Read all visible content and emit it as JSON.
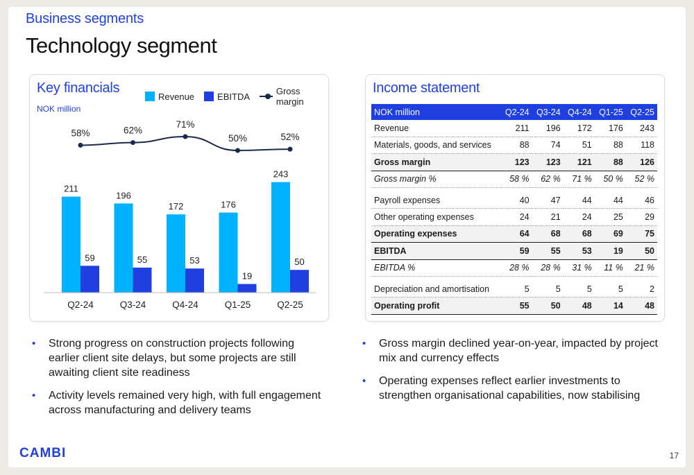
{
  "header": {
    "eyebrow": "Business segments",
    "title": "Technology segment"
  },
  "key_financials": {
    "title": "Key financials",
    "unit": "NOK million",
    "legend": {
      "revenue": "Revenue",
      "ebitda": "EBITDA",
      "gross_margin": "Gross margin"
    }
  },
  "chart_data": {
    "type": "bar",
    "categories": [
      "Q2-24",
      "Q3-24",
      "Q4-24",
      "Q1-25",
      "Q2-25"
    ],
    "series": [
      {
        "name": "Revenue",
        "values": [
          211,
          196,
          172,
          176,
          243
        ],
        "color": "#00b2ff"
      },
      {
        "name": "EBITDA",
        "values": [
          59,
          55,
          53,
          19,
          50
        ],
        "color": "#1f3fe0"
      }
    ],
    "line_series": {
      "name": "Gross margin",
      "values": [
        58,
        62,
        71,
        50,
        52
      ],
      "labels": [
        "58%",
        "62%",
        "71%",
        "50%",
        "52%"
      ],
      "color": "#1c2a4a"
    },
    "title": "Key financials",
    "ylabel": "NOK million",
    "ylim": [
      0,
      250
    ],
    "legend": "top",
    "grid": false
  },
  "income_statement": {
    "title": "Income statement",
    "header": [
      "NOK million",
      "Q2-24",
      "Q3-24",
      "Q4-24",
      "Q1-25",
      "Q2-25"
    ],
    "rows": [
      {
        "label": "Revenue",
        "values": [
          "211",
          "196",
          "172",
          "176",
          "243"
        ],
        "style": "normal"
      },
      {
        "label": "Materials, goods, and services",
        "values": [
          "88",
          "74",
          "51",
          "88",
          "118"
        ],
        "style": "normal"
      },
      {
        "label": "Gross margin",
        "values": [
          "123",
          "123",
          "121",
          "88",
          "126"
        ],
        "style": "bold"
      },
      {
        "label": "Gross margin %",
        "values": [
          "58 %",
          "62 %",
          "71 %",
          "50 %",
          "52 %"
        ],
        "style": "italic"
      },
      {
        "label": "Payroll expenses",
        "values": [
          "40",
          "47",
          "44",
          "44",
          "46"
        ],
        "style": "gap"
      },
      {
        "label": "Other operating expenses",
        "values": [
          "24",
          "21",
          "24",
          "25",
          "29"
        ],
        "style": "normal"
      },
      {
        "label": "Operating expenses",
        "values": [
          "64",
          "68",
          "68",
          "69",
          "75"
        ],
        "style": "bold"
      },
      {
        "label": "EBITDA",
        "values": [
          "59",
          "55",
          "53",
          "19",
          "50"
        ],
        "style": "bold"
      },
      {
        "label": "EBITDA %",
        "values": [
          "28 %",
          "28 %",
          "31 %",
          "11 %",
          "21 %"
        ],
        "style": "italic"
      },
      {
        "label": "Depreciation and amortisation",
        "values": [
          "5",
          "5",
          "5",
          "5",
          "2"
        ],
        "style": "gap"
      },
      {
        "label": "Operating profit",
        "values": [
          "55",
          "50",
          "48",
          "14",
          "48"
        ],
        "style": "bold"
      }
    ]
  },
  "bullets_left": [
    "Strong progress on construction projects following earlier client site delays, but some projects are still awaiting client site readiness",
    "Activity levels remained very high, with full engagement across manufacturing and delivery teams"
  ],
  "bullets_right": [
    "Gross margin declined year-on-year, impacted by project mix and currency effects",
    "Operating expenses reflect earlier investments to strengthen organisational capabilities, now stabilising"
  ],
  "footer": {
    "logo": "CAMBI",
    "page_number": "17"
  },
  "colors": {
    "accent": "#1f3fe0",
    "revenue": "#00b2ff",
    "ebitda": "#1f3fe0",
    "line": "#1c2a4a"
  }
}
